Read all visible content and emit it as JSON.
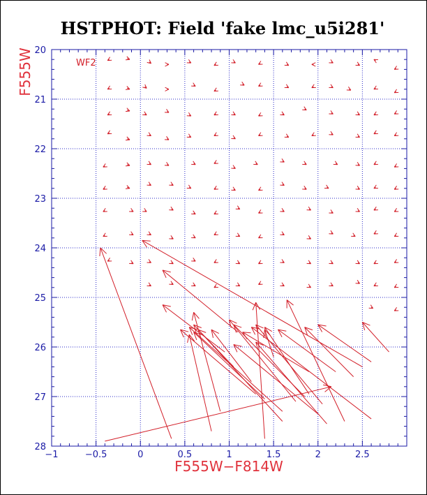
{
  "colors": {
    "axis": "#1a1aa6",
    "grid": "#2828c8",
    "marks": "#d21e28",
    "labels": "#e0323c",
    "title": "#000000"
  },
  "chart_data": {
    "type": "vector-field",
    "title": "HSTPHOT: Field 'fake lmc_u5i281'",
    "xlabel": "F555W−F814W",
    "ylabel": "F555W",
    "annotation": "WF2",
    "xlim": [
      -1,
      3
    ],
    "ylim": [
      28,
      20
    ],
    "y_reversed": true,
    "grid": true,
    "xticks": [
      -1,
      -0.5,
      0,
      0.5,
      1,
      1.5,
      2,
      2.5
    ],
    "xtick_labels": [
      "−1",
      "−0.5",
      "0",
      "0.5",
      "1",
      "1.5",
      "2",
      "2.5"
    ],
    "yticks": [
      20,
      21,
      22,
      23,
      24,
      25,
      26,
      27,
      28
    ],
    "ytick_labels": [
      "20",
      "21",
      "22",
      "23",
      "24",
      "25",
      "26",
      "27",
      "28"
    ],
    "grid_x": [
      -0.5,
      0,
      0.5,
      1,
      1.5,
      2,
      2.5
    ],
    "grid_y": [
      21,
      22,
      23,
      24,
      25,
      26,
      27
    ],
    "small_vectors": [
      [
        -0.35,
        20.2,
        -0.37,
        20.22
      ],
      [
        -0.15,
        20.18,
        -0.12,
        20.2
      ],
      [
        0.1,
        20.25,
        0.12,
        20.28
      ],
      [
        0.3,
        20.3,
        0.32,
        20.3
      ],
      [
        0.55,
        20.25,
        0.57,
        20.27
      ],
      [
        0.85,
        20.3,
        0.83,
        20.32
      ],
      [
        1.05,
        20.25,
        1.07,
        20.27
      ],
      [
        1.35,
        20.28,
        1.33,
        20.3
      ],
      [
        1.65,
        20.3,
        1.67,
        20.32
      ],
      [
        1.95,
        20.3,
        1.93,
        20.3
      ],
      [
        2.15,
        20.25,
        2.17,
        20.27
      ],
      [
        2.45,
        20.3,
        2.47,
        20.32
      ],
      [
        2.65,
        20.22,
        2.63,
        20.2
      ],
      [
        2.88,
        20.38,
        2.86,
        20.4
      ],
      [
        -0.35,
        20.78,
        -0.37,
        20.8
      ],
      [
        -0.15,
        20.78,
        -0.12,
        20.8
      ],
      [
        0.05,
        20.75,
        0.07,
        20.78
      ],
      [
        0.3,
        20.8,
        0.32,
        20.8
      ],
      [
        0.6,
        20.72,
        0.62,
        20.74
      ],
      [
        0.85,
        20.82,
        0.83,
        20.84
      ],
      [
        1.15,
        20.7,
        1.17,
        20.72
      ],
      [
        1.35,
        20.72,
        1.33,
        20.74
      ],
      [
        1.65,
        20.75,
        1.67,
        20.77
      ],
      [
        1.95,
        20.75,
        1.93,
        20.77
      ],
      [
        2.15,
        20.75,
        2.17,
        20.77
      ],
      [
        2.35,
        20.8,
        2.37,
        20.82
      ],
      [
        2.65,
        20.78,
        2.63,
        20.8
      ],
      [
        2.88,
        20.85,
        2.86,
        20.87
      ],
      [
        -0.35,
        21.3,
        -0.37,
        21.32
      ],
      [
        -0.15,
        21.22,
        -0.12,
        21.24
      ],
      [
        0.05,
        21.3,
        0.07,
        21.32
      ],
      [
        0.3,
        21.25,
        0.32,
        21.27
      ],
      [
        0.55,
        21.32,
        0.57,
        21.34
      ],
      [
        0.85,
        21.3,
        0.83,
        21.32
      ],
      [
        1.05,
        21.3,
        1.07,
        21.32
      ],
      [
        1.35,
        21.32,
        1.33,
        21.34
      ],
      [
        1.6,
        21.3,
        1.62,
        21.32
      ],
      [
        1.85,
        21.2,
        1.87,
        21.22
      ],
      [
        2.15,
        21.28,
        2.17,
        21.3
      ],
      [
        2.45,
        21.3,
        2.47,
        21.32
      ],
      [
        2.65,
        21.3,
        2.63,
        21.32
      ],
      [
        2.88,
        21.28,
        2.86,
        21.3
      ],
      [
        -0.35,
        21.68,
        -0.37,
        21.7
      ],
      [
        -0.15,
        21.8,
        -0.12,
        21.82
      ],
      [
        0.1,
        21.72,
        0.12,
        21.74
      ],
      [
        0.3,
        21.8,
        0.32,
        21.82
      ],
      [
        0.55,
        21.75,
        0.57,
        21.77
      ],
      [
        0.85,
        21.72,
        0.83,
        21.74
      ],
      [
        1.05,
        21.78,
        1.07,
        21.8
      ],
      [
        1.35,
        21.72,
        1.33,
        21.74
      ],
      [
        1.65,
        21.75,
        1.67,
        21.77
      ],
      [
        1.95,
        21.72,
        1.93,
        21.74
      ],
      [
        2.15,
        21.7,
        2.17,
        21.72
      ],
      [
        2.45,
        21.75,
        2.47,
        21.77
      ],
      [
        2.65,
        21.68,
        2.63,
        21.7
      ],
      [
        2.88,
        21.72,
        2.86,
        21.74
      ],
      [
        -0.4,
        22.35,
        -0.42,
        22.37
      ],
      [
        -0.15,
        22.32,
        -0.12,
        22.34
      ],
      [
        0.1,
        22.3,
        0.12,
        22.32
      ],
      [
        0.3,
        22.32,
        0.32,
        22.34
      ],
      [
        0.6,
        22.3,
        0.62,
        22.32
      ],
      [
        0.85,
        22.28,
        0.83,
        22.3
      ],
      [
        1.05,
        22.38,
        1.07,
        22.4
      ],
      [
        1.3,
        22.3,
        1.32,
        22.32
      ],
      [
        1.6,
        22.25,
        1.62,
        22.27
      ],
      [
        1.85,
        22.3,
        1.87,
        22.32
      ],
      [
        2.2,
        22.3,
        2.22,
        22.32
      ],
      [
        2.45,
        22.32,
        2.47,
        22.34
      ],
      [
        2.65,
        22.3,
        2.63,
        22.32
      ],
      [
        2.88,
        22.35,
        2.86,
        22.37
      ],
      [
        -0.4,
        22.8,
        -0.42,
        22.82
      ],
      [
        -0.15,
        22.78,
        -0.12,
        22.8
      ],
      [
        0.1,
        22.72,
        0.12,
        22.74
      ],
      [
        0.35,
        22.72,
        0.37,
        22.74
      ],
      [
        0.55,
        22.78,
        0.57,
        22.8
      ],
      [
        0.85,
        22.8,
        0.83,
        22.82
      ],
      [
        1.05,
        22.82,
        1.07,
        22.84
      ],
      [
        1.35,
        22.82,
        1.33,
        22.84
      ],
      [
        1.6,
        22.72,
        1.62,
        22.74
      ],
      [
        1.85,
        22.8,
        1.87,
        22.82
      ],
      [
        2.1,
        22.78,
        2.12,
        22.8
      ],
      [
        2.45,
        22.8,
        2.47,
        22.82
      ],
      [
        2.65,
        22.78,
        2.63,
        22.8
      ],
      [
        2.88,
        22.8,
        2.86,
        22.82
      ],
      [
        -0.4,
        23.25,
        -0.42,
        23.27
      ],
      [
        -0.1,
        23.25,
        -0.08,
        23.27
      ],
      [
        0.05,
        23.25,
        0.07,
        23.27
      ],
      [
        0.35,
        23.22,
        0.37,
        23.24
      ],
      [
        0.6,
        23.3,
        0.62,
        23.32
      ],
      [
        0.85,
        23.3,
        0.83,
        23.32
      ],
      [
        1.1,
        23.2,
        1.12,
        23.22
      ],
      [
        1.35,
        23.28,
        1.33,
        23.3
      ],
      [
        1.6,
        23.25,
        1.62,
        23.27
      ],
      [
        1.9,
        23.22,
        1.92,
        23.24
      ],
      [
        2.15,
        23.28,
        2.17,
        23.3
      ],
      [
        2.45,
        23.25,
        2.47,
        23.27
      ],
      [
        2.65,
        23.22,
        2.63,
        23.24
      ],
      [
        2.88,
        23.25,
        2.86,
        23.27
      ],
      [
        -0.4,
        23.75,
        -0.42,
        23.77
      ],
      [
        -0.1,
        23.72,
        -0.08,
        23.74
      ],
      [
        0.1,
        23.72,
        0.12,
        23.74
      ],
      [
        0.35,
        23.8,
        0.37,
        23.82
      ],
      [
        0.6,
        23.78,
        0.62,
        23.8
      ],
      [
        0.85,
        23.72,
        0.83,
        23.74
      ],
      [
        1.1,
        23.75,
        1.12,
        23.77
      ],
      [
        1.35,
        23.78,
        1.33,
        23.8
      ],
      [
        1.6,
        23.72,
        1.62,
        23.74
      ],
      [
        1.9,
        23.8,
        1.92,
        23.82
      ],
      [
        2.15,
        23.7,
        2.17,
        23.72
      ],
      [
        2.4,
        23.75,
        2.42,
        23.77
      ],
      [
        2.65,
        23.7,
        2.63,
        23.72
      ],
      [
        2.88,
        23.75,
        2.86,
        23.77
      ],
      [
        -0.35,
        24.25,
        -0.37,
        24.27
      ],
      [
        -0.1,
        24.3,
        -0.08,
        24.32
      ],
      [
        0.1,
        24.28,
        0.12,
        24.3
      ],
      [
        0.35,
        24.3,
        0.37,
        24.32
      ],
      [
        0.6,
        24.25,
        0.62,
        24.27
      ],
      [
        0.85,
        24.28,
        0.83,
        24.3
      ],
      [
        1.1,
        24.3,
        1.12,
        24.32
      ],
      [
        1.35,
        24.3,
        1.33,
        24.32
      ],
      [
        1.6,
        24.28,
        1.62,
        24.3
      ],
      [
        1.9,
        24.3,
        1.92,
        24.32
      ],
      [
        2.15,
        24.3,
        2.17,
        24.32
      ],
      [
        2.45,
        24.3,
        2.47,
        24.32
      ],
      [
        2.65,
        24.3,
        2.63,
        24.32
      ],
      [
        2.88,
        24.28,
        2.86,
        24.3
      ],
      [
        0.1,
        24.75,
        0.12,
        24.77
      ],
      [
        0.35,
        24.72,
        0.37,
        24.74
      ],
      [
        0.6,
        24.75,
        0.62,
        24.77
      ],
      [
        0.85,
        24.78,
        0.83,
        24.8
      ],
      [
        1.1,
        24.75,
        1.12,
        24.77
      ],
      [
        1.35,
        24.72,
        1.33,
        24.74
      ],
      [
        1.6,
        24.75,
        1.62,
        24.77
      ],
      [
        1.9,
        24.78,
        1.92,
        24.8
      ],
      [
        2.15,
        24.75,
        2.17,
        24.77
      ],
      [
        2.45,
        24.7,
        2.47,
        24.72
      ],
      [
        2.65,
        24.75,
        2.63,
        24.77
      ],
      [
        2.88,
        24.78,
        2.86,
        24.8
      ],
      [
        2.6,
        25.2,
        2.62,
        25.22
      ],
      [
        2.88,
        25.25,
        2.86,
        25.27
      ]
    ],
    "long_vectors": [
      [
        0.35,
        27.85,
        -0.45,
        24.0
      ],
      [
        -0.4,
        27.9,
        2.15,
        26.8
      ],
      [
        2.5,
        26.4,
        0.02,
        23.85
      ],
      [
        2.8,
        26.1,
        2.5,
        25.5
      ],
      [
        2.6,
        26.3,
        2.0,
        25.55
      ],
      [
        2.4,
        26.6,
        1.85,
        25.6
      ],
      [
        2.2,
        26.5,
        1.55,
        25.65
      ],
      [
        2.3,
        27.5,
        1.65,
        25.05
      ],
      [
        2.6,
        27.45,
        1.25,
        25.6
      ],
      [
        1.75,
        27.1,
        1.0,
        25.45
      ],
      [
        1.85,
        27.0,
        1.05,
        25.55
      ],
      [
        2.05,
        27.15,
        1.3,
        25.55
      ],
      [
        1.9,
        26.95,
        1.4,
        25.6
      ],
      [
        2.0,
        27.35,
        1.05,
        25.95
      ],
      [
        2.1,
        27.55,
        1.3,
        25.9
      ],
      [
        1.4,
        27.85,
        1.3,
        25.1
      ],
      [
        1.6,
        27.5,
        0.6,
        25.55
      ],
      [
        1.6,
        27.3,
        0.55,
        25.6
      ],
      [
        1.3,
        26.95,
        0.45,
        25.65
      ],
      [
        1.4,
        27.05,
        0.6,
        25.7
      ],
      [
        1.25,
        26.7,
        0.8,
        25.65
      ],
      [
        1.05,
        26.4,
        0.65,
        25.65
      ],
      [
        0.9,
        27.3,
        0.6,
        25.3
      ],
      [
        0.8,
        27.7,
        0.55,
        25.75
      ],
      [
        1.1,
        25.7,
        0.25,
        24.45
      ],
      [
        0.95,
        26.1,
        0.25,
        25.15
      ],
      [
        1.9,
        26.5,
        1.15,
        25.7
      ],
      [
        1.5,
        26.2,
        1.4,
        25.65
      ]
    ]
  }
}
